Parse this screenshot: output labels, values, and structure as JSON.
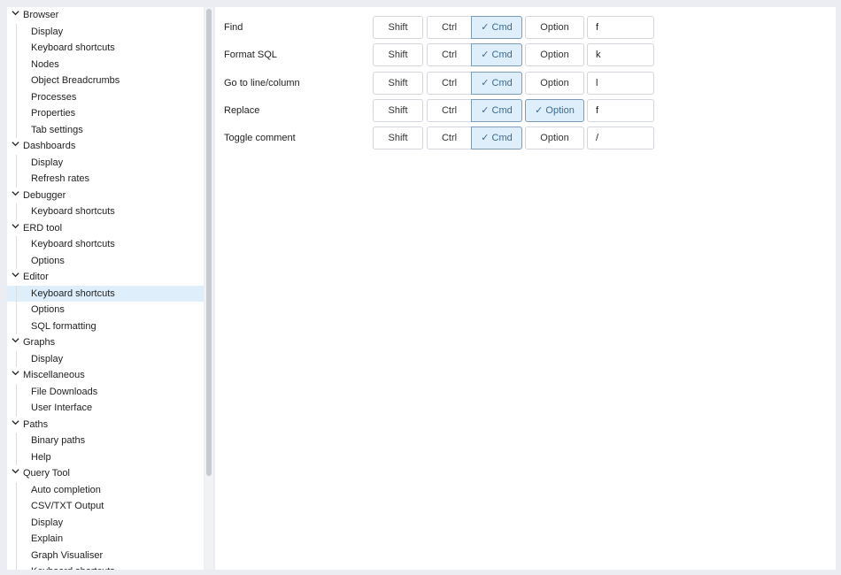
{
  "tree": [
    {
      "label": "Browser",
      "children": [
        "Display",
        "Keyboard shortcuts",
        "Nodes",
        "Object Breadcrumbs",
        "Processes",
        "Properties",
        "Tab settings"
      ]
    },
    {
      "label": "Dashboards",
      "children": [
        "Display",
        "Refresh rates"
      ]
    },
    {
      "label": "Debugger",
      "children": [
        "Keyboard shortcuts"
      ]
    },
    {
      "label": "ERD tool",
      "children": [
        "Keyboard shortcuts",
        "Options"
      ]
    },
    {
      "label": "Editor",
      "children": [
        "Keyboard shortcuts",
        "Options",
        "SQL formatting"
      ]
    },
    {
      "label": "Graphs",
      "children": [
        "Display"
      ]
    },
    {
      "label": "Miscellaneous",
      "children": [
        "File Downloads",
        "User Interface"
      ]
    },
    {
      "label": "Paths",
      "children": [
        "Binary paths",
        "Help"
      ]
    },
    {
      "label": "Query Tool",
      "children": [
        "Auto completion",
        "CSV/TXT Output",
        "Display",
        "Explain",
        "Graph Visualiser",
        "Keyboard shortcuts"
      ]
    }
  ],
  "selected": "Editor / Keyboard shortcuts",
  "labels": {
    "shift": "Shift",
    "ctrl": "Ctrl",
    "cmd": "Cmd",
    "option": "Option",
    "check": "✓"
  },
  "shortcuts": [
    {
      "name": "Find",
      "shift": false,
      "ctrl": false,
      "cmd": true,
      "option": false,
      "key": "f"
    },
    {
      "name": "Format SQL",
      "shift": false,
      "ctrl": false,
      "cmd": true,
      "option": false,
      "key": "k"
    },
    {
      "name": "Go to line/column",
      "shift": false,
      "ctrl": false,
      "cmd": true,
      "option": false,
      "key": "l"
    },
    {
      "name": "Replace",
      "shift": false,
      "ctrl": false,
      "cmd": true,
      "option": true,
      "key": "f"
    },
    {
      "name": "Toggle comment",
      "shift": false,
      "ctrl": false,
      "cmd": true,
      "option": false,
      "key": "/"
    }
  ]
}
